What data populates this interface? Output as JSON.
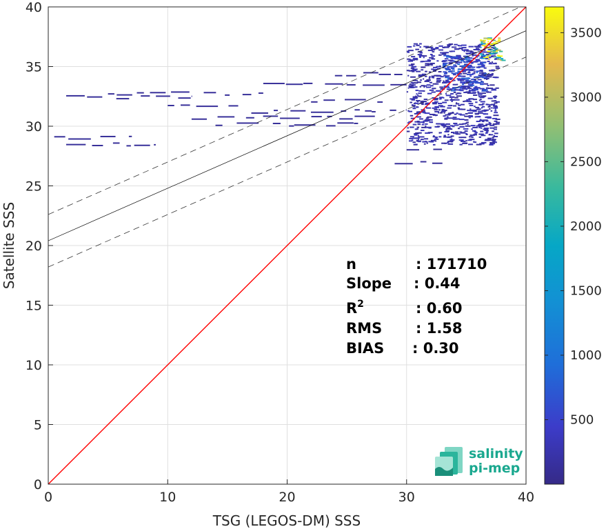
{
  "chart_data": {
    "type": "heatmap",
    "xlabel": "TSG (LEGOS-DM) SSS",
    "ylabel": "Satellite SSS",
    "xlim": [
      0,
      40
    ],
    "ylim": [
      0,
      40
    ],
    "x_ticks": [
      0,
      10,
      20,
      30,
      40
    ],
    "y_ticks": [
      0,
      5,
      10,
      15,
      20,
      25,
      30,
      35,
      40
    ],
    "grid": true,
    "colorbar": {
      "range": [
        0,
        3700
      ],
      "ticks": [
        500,
        1000,
        1500,
        2000,
        2500,
        3000,
        3500
      ],
      "colormap": "parula"
    },
    "reference_line": {
      "slope": 1,
      "intercept": 0,
      "color": "#ff0000"
    },
    "fit_line": {
      "slope": 0.44,
      "intercept": 20.4,
      "color": "#000000"
    },
    "fit_band_offset": 2.2,
    "density_regions": [
      {
        "x": [
          30,
          37.5
        ],
        "y": [
          28.5,
          37
        ],
        "count": 250
      },
      {
        "x": [
          36,
          38
        ],
        "y": [
          35.5,
          37.5
        ],
        "count": 3000
      },
      {
        "x": [
          33,
          36.5
        ],
        "y": [
          33,
          36
        ],
        "count": 600
      }
    ],
    "density_streaks": [
      {
        "x": [
          1.5,
          12
        ],
        "y": 32.5
      },
      {
        "x": [
          5,
          18
        ],
        "y": 32.8
      },
      {
        "x": [
          0.5,
          7
        ],
        "y": 29.1
      },
      {
        "x": [
          1.5,
          9
        ],
        "y": 28.5
      },
      {
        "x": [
          12,
          28
        ],
        "y": 30.8
      },
      {
        "x": [
          14,
          26
        ],
        "y": 30.2
      },
      {
        "x": [
          17,
          30
        ],
        "y": 31.3
      },
      {
        "x": [
          18,
          30
        ],
        "y": 33.5
      },
      {
        "x": [
          24,
          30
        ],
        "y": 34.4
      },
      {
        "x": [
          22,
          28
        ],
        "y": 32.2
      },
      {
        "x": [
          10,
          16
        ],
        "y": 31.8
      },
      {
        "x": [
          29,
          33
        ],
        "y": 27.0
      },
      {
        "x": [
          30,
          33
        ],
        "y": 28.0
      }
    ],
    "stats": [
      {
        "label": "n",
        "sup": "",
        "value": ": 171710"
      },
      {
        "label": "Slope",
        "sup": "",
        "value": ": 0.44"
      },
      {
        "label": "R",
        "sup": "2",
        "value": ": 0.60"
      },
      {
        "label": "RMS",
        "sup": "",
        "value": ": 1.58"
      },
      {
        "label": "BIAS",
        "sup": "",
        "value": ": 0.30"
      }
    ]
  },
  "logo": {
    "line1": "salinity",
    "line2": "pi-mep"
  }
}
